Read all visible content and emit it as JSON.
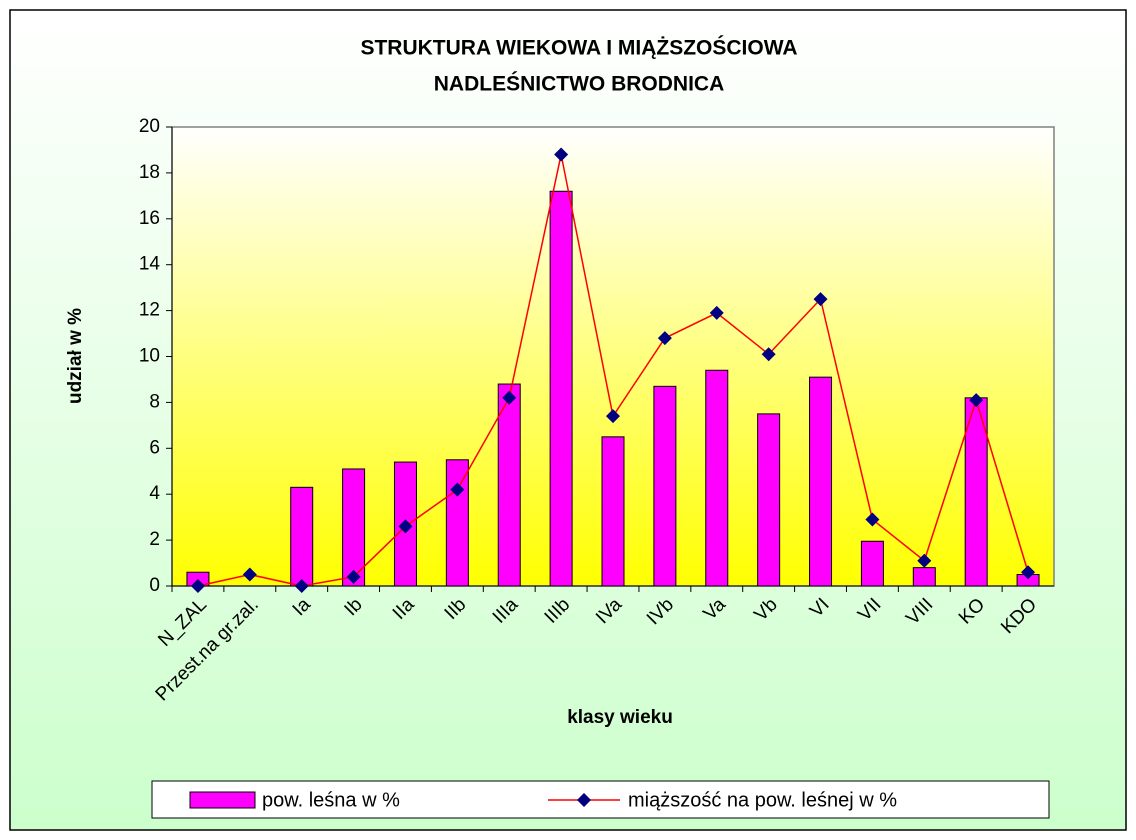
{
  "chart_data": {
    "type": "bar_line",
    "title": [
      "STRUKTURA WIEKOWA I MIĄŻSZOŚCIOWA",
      "NADLEŚNICTWO BRODNICA"
    ],
    "x_label": "klasy wieku",
    "y_label": "udział w %",
    "categories": [
      "N_ZAL",
      "Przest.na gr.zal.",
      "Ia",
      "Ib",
      "IIa",
      "IIb",
      "IIIa",
      "IIIb",
      "IVa",
      "IVb",
      "Va",
      "Vb",
      "VI",
      "VII",
      "VIII",
      "KO",
      "KDO"
    ],
    "series": [
      {
        "name": "pow. leśna w %",
        "color": "#ff00ff",
        "kind": "bar",
        "values": [
          0.6,
          0,
          4.3,
          5.1,
          5.4,
          5.5,
          8.8,
          17.2,
          6.5,
          8.7,
          9.4,
          7.5,
          9.1,
          1.95,
          0.8,
          8.2,
          0.5
        ]
      },
      {
        "name": "miąższość na pow. leśnej w %",
        "color": "#ff0000",
        "marker_color": "#000080",
        "kind": "line",
        "values": [
          0,
          0.5,
          0,
          0.4,
          2.6,
          4.2,
          8.2,
          18.8,
          7.4,
          10.8,
          11.9,
          10.1,
          12.5,
          2.9,
          1.1,
          8.1,
          0.6
        ]
      }
    ],
    "ylim": [
      0,
      20
    ],
    "yticks": [
      0,
      2,
      4,
      6,
      8,
      10,
      12,
      14,
      16,
      18,
      20
    ],
    "legend": "bottom"
  }
}
